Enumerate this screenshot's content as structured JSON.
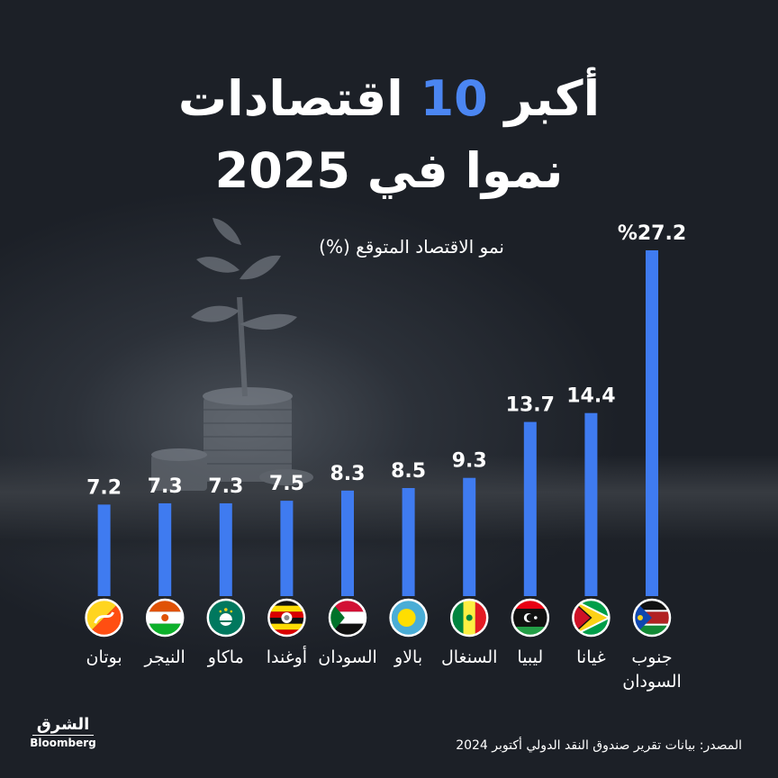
{
  "chart_data": {
    "type": "bar",
    "title_line1_pre": "أكبر",
    "title_line1_highlight": "10",
    "title_line1_post": "اقتصادات",
    "title_line2": "نموا في 2025",
    "subtitle": "نمو الاقتصاد المتوقع (%)",
    "categories": [
      [
        "جنوب",
        "السودان"
      ],
      [
        "غيانا"
      ],
      [
        "ليبيا"
      ],
      [
        "السنغال"
      ],
      [
        "بالاو"
      ],
      [
        "السودان"
      ],
      [
        "أوغندا"
      ],
      [
        "ماكاو"
      ],
      [
        "النيجر"
      ],
      [
        "بوتان"
      ]
    ],
    "values": [
      27.2,
      14.4,
      13.7,
      9.3,
      8.5,
      8.3,
      7.5,
      7.3,
      7.3,
      7.2
    ],
    "value_labels": [
      "%27.2",
      "14.4",
      "13.7",
      "9.3",
      "8.5",
      "8.3",
      "7.5",
      "7.3",
      "7.3",
      "7.2"
    ],
    "flags": [
      "south-sudan-flag",
      "guyana-flag",
      "libya-flag",
      "senegal-flag",
      "palau-flag",
      "sudan-flag",
      "uganda-flag",
      "macau-flag",
      "niger-flag",
      "bhutan-flag"
    ],
    "bar_color": "#3f7bf0",
    "ylim": [
      0,
      27.2
    ]
  },
  "source": "المصدر: بيانات تقرير صندوق النقد الدولي  أكتوبر 2024",
  "logo": {
    "top": "الشرق",
    "bottom": "Bloomberg"
  }
}
